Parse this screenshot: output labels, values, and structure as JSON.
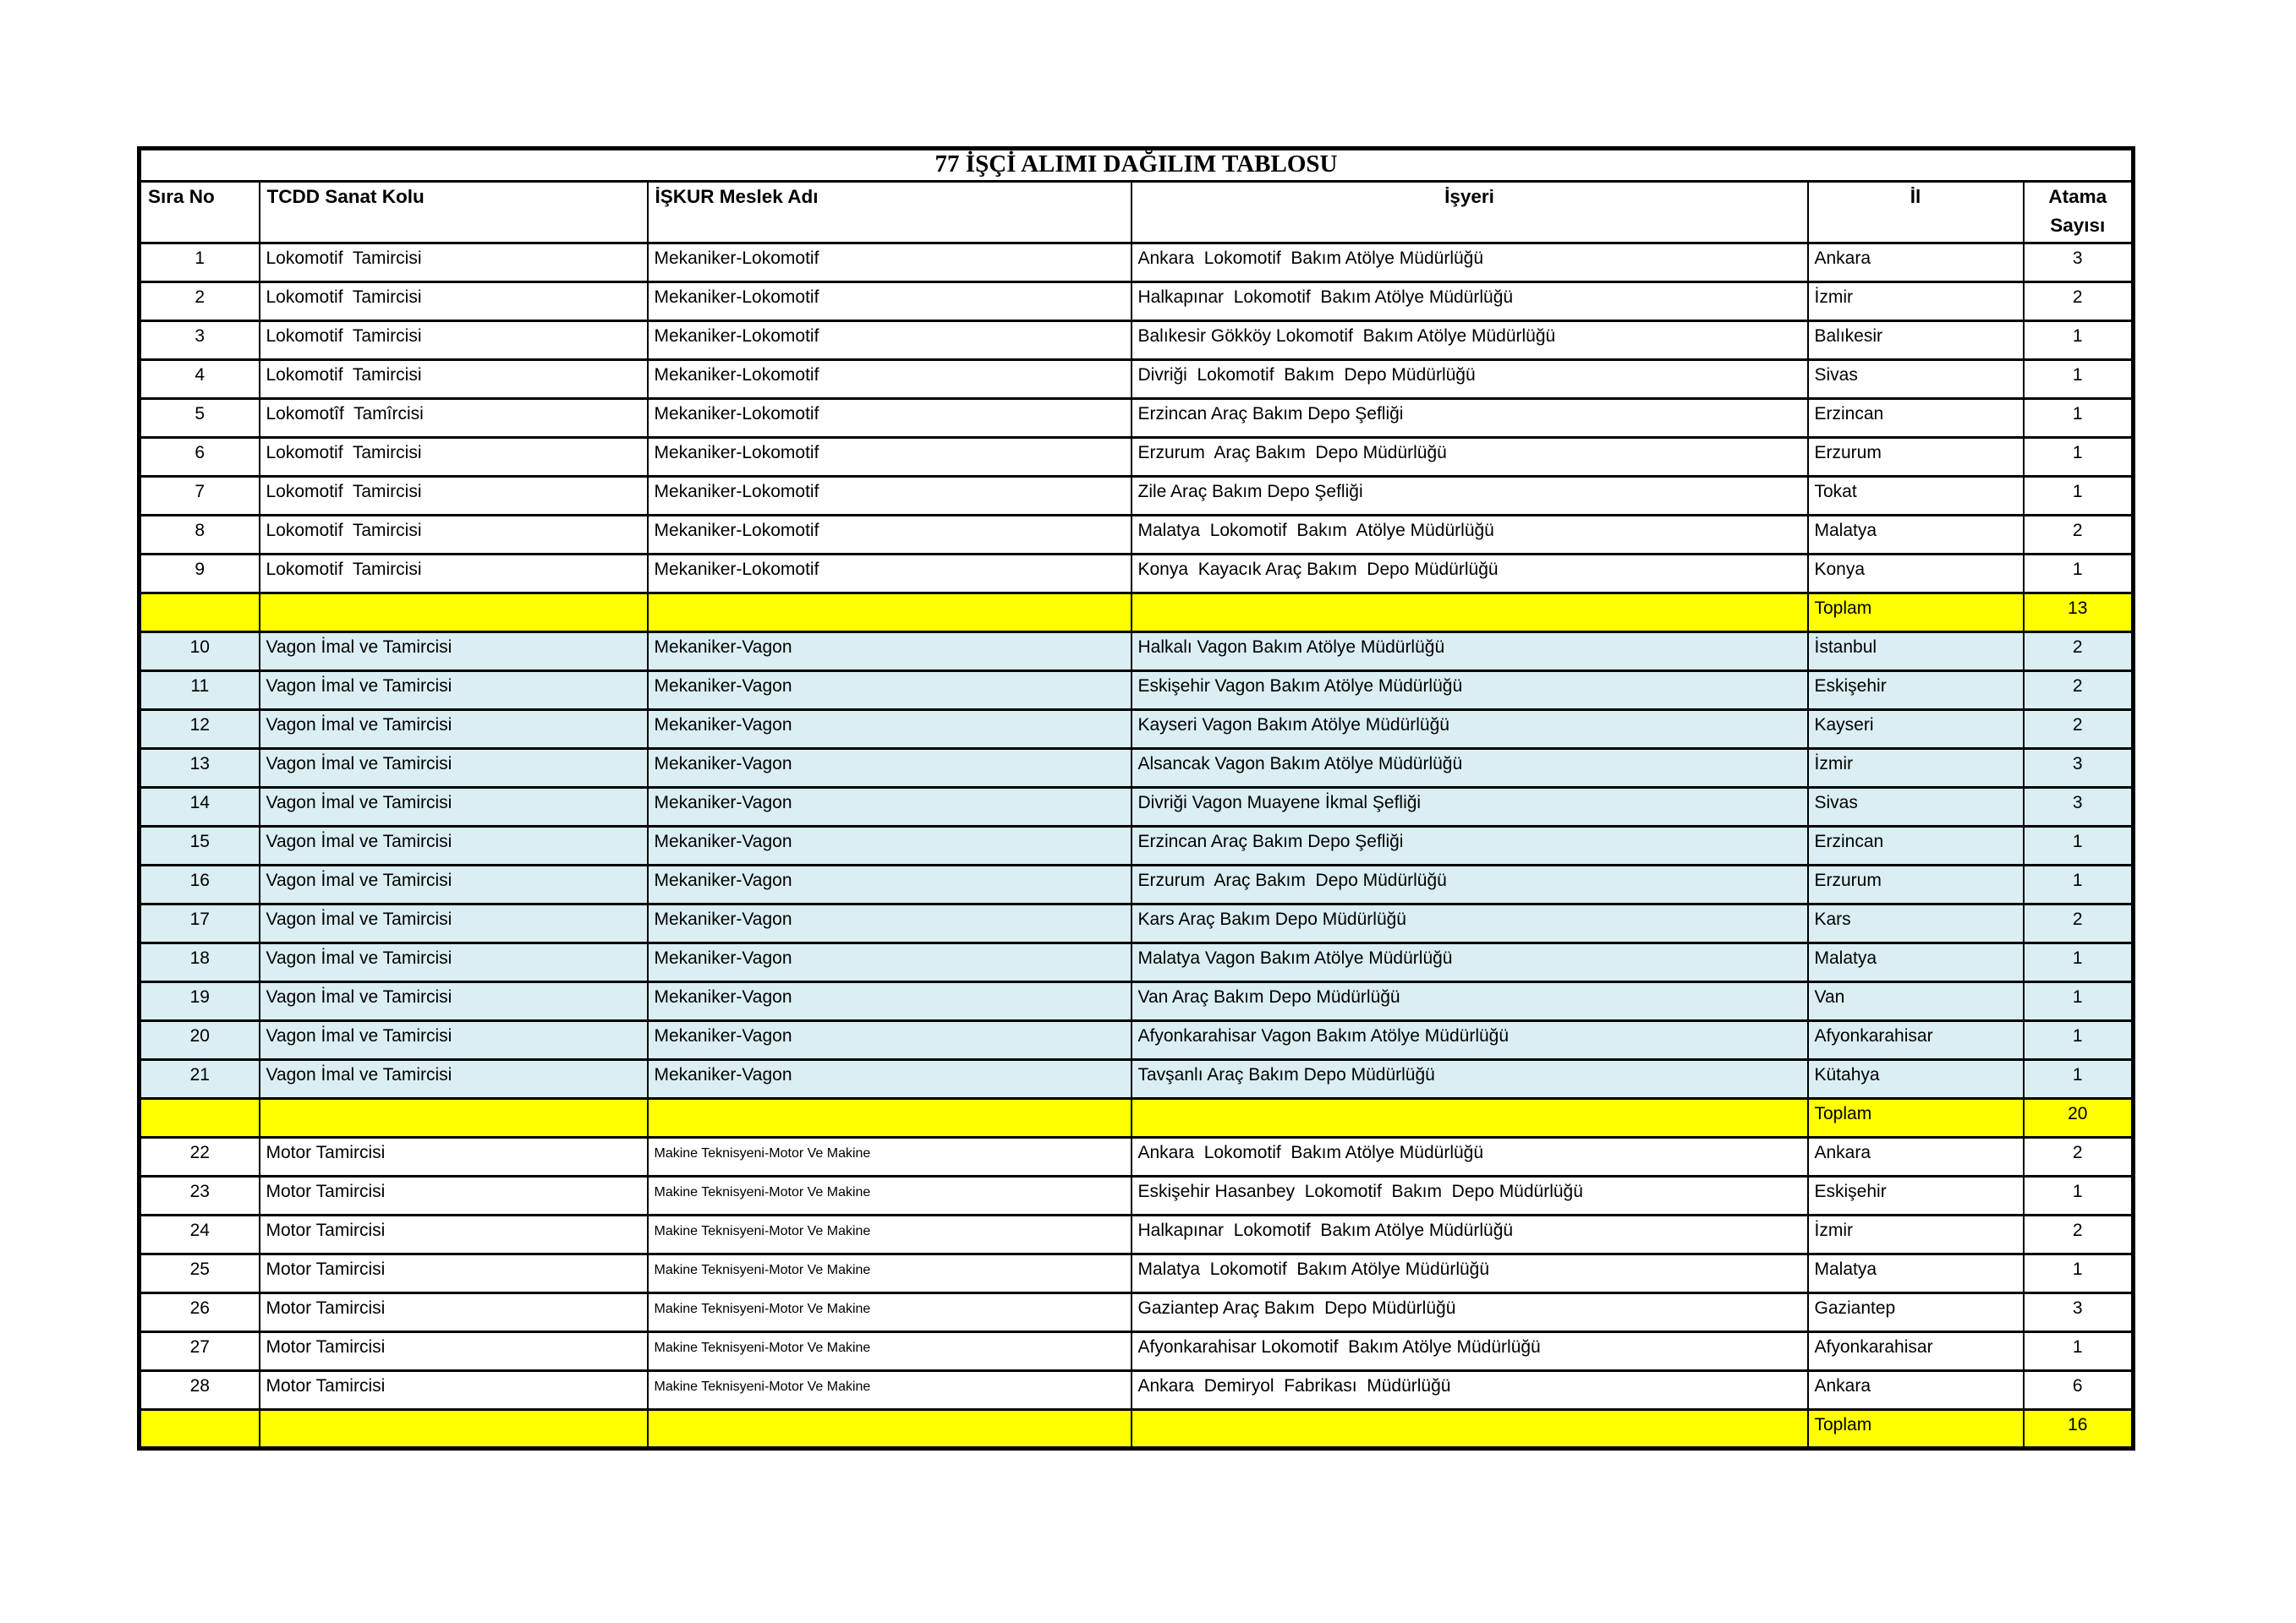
{
  "page": {
    "background": "#FFFFFF"
  },
  "table": {
    "title": "77 İŞÇİ ALIMI DAĞILIM TABLOSU",
    "columns": [
      "Sıra No",
      "TCDD Sanat Kolu",
      "İŞKUR Meslek Adı",
      "İşyeri",
      "İl",
      "Atama Sayısı"
    ],
    "colors": {
      "total_row_bg": "#FFFF00",
      "section_blue_bg": "#DAEEF3",
      "border": "#000000",
      "text": "#000000"
    },
    "sections": [
      {
        "style": "white",
        "meslek_small": false,
        "rows": [
          {
            "no": "1",
            "sanat_kolu": "Lokomotif  Tamircisi",
            "meslek_adi": "Mekaniker-Lokomotif",
            "isyeri": "Ankara  Lokomotif  Bakım Atölye Müdürlüğü",
            "il": "Ankara",
            "atama": "3"
          },
          {
            "no": "2",
            "sanat_kolu": "Lokomotif  Tamircisi",
            "meslek_adi": "Mekaniker-Lokomotif",
            "isyeri": "Halkapınar  Lokomotif  Bakım Atölye Müdürlüğü",
            "il": "İzmir",
            "atama": "2"
          },
          {
            "no": "3",
            "sanat_kolu": "Lokomotif  Tamircisi",
            "meslek_adi": "Mekaniker-Lokomotif",
            "isyeri": "Balıkesir Gökköy Lokomotif  Bakım Atölye Müdürlüğü",
            "il": "Balıkesir",
            "atama": "1"
          },
          {
            "no": "4",
            "sanat_kolu": "Lokomotif  Tamircisi",
            "meslek_adi": "Mekaniker-Lokomotif",
            "isyeri": "Divriği  Lokomotif  Bakım  Depo Müdürlüğü",
            "il": "Sivas",
            "atama": "1"
          },
          {
            "no": "5",
            "sanat_kolu": "Lokomotîf  Tamîrcisi",
            "meslek_adi": "Mekaniker-Lokomotif",
            "isyeri": "Erzincan Araç Bakım Depo Şefliği",
            "il": "Erzincan",
            "atama": "1"
          },
          {
            "no": "6",
            "sanat_kolu": "Lokomotif  Tamircisi",
            "meslek_adi": "Mekaniker-Lokomotif",
            "isyeri": "Erzurum  Araç Bakım  Depo Müdürlüğü",
            "il": "Erzurum",
            "atama": "1"
          },
          {
            "no": "7",
            "sanat_kolu": "Lokomotif  Tamircisi",
            "meslek_adi": "Mekaniker-Lokomotif",
            "isyeri": "Zile Araç Bakım Depo Şefliği",
            "il": "Tokat",
            "atama": "1"
          },
          {
            "no": "8",
            "sanat_kolu": "Lokomotif  Tamircisi",
            "meslek_adi": "Mekaniker-Lokomotif",
            "isyeri": "Malatya  Lokomotif  Bakım  Atölye Müdürlüğü",
            "il": "Malatya",
            "atama": "2"
          },
          {
            "no": "9",
            "sanat_kolu": "Lokomotif  Tamircisi",
            "meslek_adi": "Mekaniker-Lokomotif",
            "isyeri": "Konya  Kayacık Araç Bakım  Depo Müdürlüğü",
            "il": "Konya",
            "atama": "1"
          }
        ],
        "total_label": "Toplam",
        "total_value": "13"
      },
      {
        "style": "blue",
        "meslek_small": false,
        "rows": [
          {
            "no": "10",
            "sanat_kolu": "Vagon İmal ve Tamircisi",
            "meslek_adi": "Mekaniker-Vagon",
            "isyeri": "Halkalı Vagon Bakım Atölye Müdürlüğü",
            "il": "İstanbul",
            "atama": "2"
          },
          {
            "no": "11",
            "sanat_kolu": "Vagon İmal ve Tamircisi",
            "meslek_adi": "Mekaniker-Vagon",
            "isyeri": "Eskişehir Vagon Bakım Atölye Müdürlüğü",
            "il": "Eskişehir",
            "atama": "2"
          },
          {
            "no": "12",
            "sanat_kolu": "Vagon İmal ve Tamircisi",
            "meslek_adi": "Mekaniker-Vagon",
            "isyeri": "Kayseri Vagon Bakım Atölye Müdürlüğü",
            "il": "Kayseri",
            "atama": "2"
          },
          {
            "no": "13",
            "sanat_kolu": "Vagon İmal ve Tamircisi",
            "meslek_adi": "Mekaniker-Vagon",
            "isyeri": "Alsancak Vagon Bakım Atölye Müdürlüğü",
            "il": "İzmir",
            "atama": "3"
          },
          {
            "no": "14",
            "sanat_kolu": "Vagon İmal ve Tamircisi",
            "meslek_adi": "Mekaniker-Vagon",
            "isyeri": "Divriği Vagon Muayene İkmal Şefliği",
            "il": "Sivas",
            "atama": "3"
          },
          {
            "no": "15",
            "sanat_kolu": "Vagon İmal ve Tamircisi",
            "meslek_adi": "Mekaniker-Vagon",
            "isyeri": "Erzincan Araç Bakım Depo Şefliği",
            "il": "Erzincan",
            "atama": "1"
          },
          {
            "no": "16",
            "sanat_kolu": "Vagon İmal ve Tamircisi",
            "meslek_adi": "Mekaniker-Vagon",
            "isyeri": "Erzurum  Araç Bakım  Depo Müdürlüğü",
            "il": "Erzurum",
            "atama": "1"
          },
          {
            "no": "17",
            "sanat_kolu": "Vagon İmal ve Tamircisi",
            "meslek_adi": "Mekaniker-Vagon",
            "isyeri": "Kars Araç Bakım Depo Müdürlüğü",
            "il": "Kars",
            "atama": "2"
          },
          {
            "no": "18",
            "sanat_kolu": "Vagon İmal ve Tamircisi",
            "meslek_adi": "Mekaniker-Vagon",
            "isyeri": "Malatya Vagon Bakım Atölye Müdürlüğü",
            "il": "Malatya",
            "atama": "1"
          },
          {
            "no": "19",
            "sanat_kolu": "Vagon İmal ve Tamircisi",
            "meslek_adi": "Mekaniker-Vagon",
            "isyeri": "Van Araç Bakım Depo Müdürlüğü",
            "il": "Van",
            "atama": "1"
          },
          {
            "no": "20",
            "sanat_kolu": "Vagon İmal ve Tamircisi",
            "meslek_adi": "Mekaniker-Vagon",
            "isyeri": "Afyonkarahisar Vagon Bakım Atölye Müdürlüğü",
            "il": "Afyonkarahisar",
            "atama": "1"
          },
          {
            "no": "21",
            "sanat_kolu": "Vagon İmal ve Tamircisi",
            "meslek_adi": "Mekaniker-Vagon",
            "isyeri": "Tavşanlı Araç Bakım Depo Müdürlüğü",
            "il": "Kütahya",
            "atama": "1"
          }
        ],
        "total_label": "Toplam",
        "total_value": "20"
      },
      {
        "style": "white",
        "meslek_small": true,
        "rows": [
          {
            "no": "22",
            "sanat_kolu": "Motor Tamircisi",
            "meslek_adi": "Makine Teknisyeni-Motor Ve Makine",
            "isyeri": "Ankara  Lokomotif  Bakım Atölye Müdürlüğü",
            "il": "Ankara",
            "atama": "2"
          },
          {
            "no": "23",
            "sanat_kolu": "Motor Tamircisi",
            "meslek_adi": "Makine Teknisyeni-Motor Ve Makine",
            "isyeri": "Eskişehir Hasanbey  Lokomotif  Bakım  Depo Müdürlüğü",
            "il": "Eskişehir",
            "atama": "1"
          },
          {
            "no": "24",
            "sanat_kolu": "Motor Tamircisi",
            "meslek_adi": "Makine Teknisyeni-Motor Ve Makine",
            "isyeri": "Halkapınar  Lokomotif  Bakım Atölye Müdürlüğü",
            "il": "İzmir",
            "atama": "2"
          },
          {
            "no": "25",
            "sanat_kolu": "Motor Tamircisi",
            "meslek_adi": "Makine Teknisyeni-Motor Ve Makine",
            "isyeri": "Malatya  Lokomotif  Bakım Atölye Müdürlüğü",
            "il": "Malatya",
            "atama": "1"
          },
          {
            "no": "26",
            "sanat_kolu": "Motor Tamircisi",
            "meslek_adi": "Makine Teknisyeni-Motor Ve Makine",
            "isyeri": "Gaziantep Araç Bakım  Depo Müdürlüğü",
            "il": "Gaziantep",
            "atama": "3"
          },
          {
            "no": "27",
            "sanat_kolu": "Motor Tamircisi",
            "meslek_adi": "Makine Teknisyeni-Motor Ve Makine",
            "isyeri": "Afyonkarahisar Lokomotif  Bakım Atölye Müdürlüğü",
            "il": "Afyonkarahisar",
            "atama": "1"
          },
          {
            "no": "28",
            "sanat_kolu": "Motor Tamircisi",
            "meslek_adi": "Makine Teknisyeni-Motor Ve Makine",
            "isyeri": "Ankara  Demiryol  Fabrikası  Müdürlüğü",
            "il": "Ankara",
            "atama": "6"
          }
        ],
        "total_label": "Toplam",
        "total_value": "16"
      }
    ]
  }
}
